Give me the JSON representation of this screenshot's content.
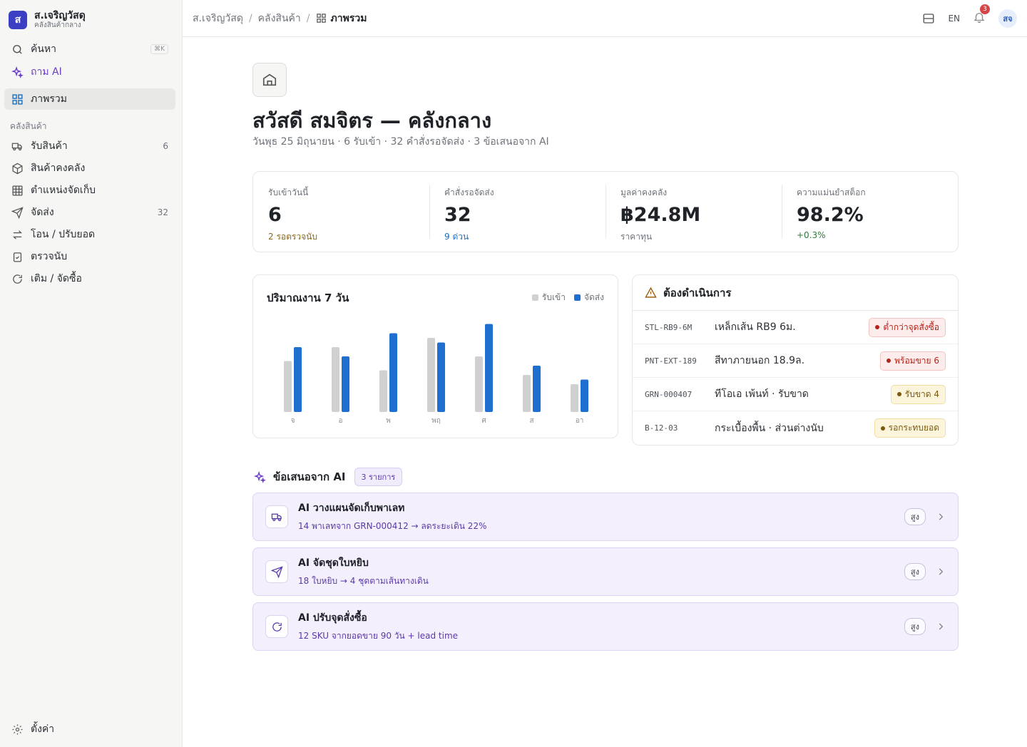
{
  "brand": {
    "logo": "ส",
    "name": "ส.เจริญวัสดุ",
    "sub": "คลังสินค้ากลาง"
  },
  "sidebar": {
    "search_label": "ค้นหา",
    "search_kbd": "⌘K",
    "ask_ai": "ถาม AI",
    "overview": "ภาพรวม",
    "section": "คลังสินค้า",
    "items": [
      {
        "label": "รับสินค้า",
        "count": "6",
        "icon": "truck-icon"
      },
      {
        "label": "สินค้าคงคลัง",
        "count": "",
        "icon": "box-icon"
      },
      {
        "label": "ตำแหน่งจัดเก็บ",
        "count": "",
        "icon": "grid-icon"
      },
      {
        "label": "จัดส่ง",
        "count": "32",
        "icon": "send-icon"
      },
      {
        "label": "โอน / ปรับยอด",
        "count": "",
        "icon": "transfer-icon"
      },
      {
        "label": "ตรวจนับ",
        "count": "",
        "icon": "clipboard-check-icon"
      },
      {
        "label": "เติม / จัดซื้อ",
        "count": "",
        "icon": "refresh-icon"
      }
    ],
    "settings": "ตั้งค่า"
  },
  "topbar": {
    "crumbs": [
      "ส.เจริญวัสดุ",
      "คลังสินค้า"
    ],
    "current": "ภาพรวม",
    "lang": "EN",
    "notif_count": "3",
    "avatar": "สจ"
  },
  "header": {
    "title": "สวัสดี สมจิตร — คลังกลาง",
    "subtitle": "วันพุธ 25 มิถุนายน · 6 รับเข้า · 32 คำสั่งรอจัดส่ง · 3 ข้อเสนอจาก AI"
  },
  "stats": [
    {
      "label": "รับเข้าวันนี้",
      "value": "6",
      "note": "2 รอตรวจนับ",
      "note_color": "#8a6a12"
    },
    {
      "label": "คำสั่งรอจัดส่ง",
      "value": "32",
      "note": "9 ด่วน",
      "note_color": "#1d6fbf"
    },
    {
      "label": "มูลค่าคงคลัง",
      "value": "฿24.8M",
      "note": "ราคาทุน",
      "note_color": "#6e737a"
    },
    {
      "label": "ความแม่นยำสต็อก",
      "value": "98.2%",
      "note": "+0.3%",
      "note_color": "#2f7a3a"
    }
  ],
  "chart": {
    "title": "ปริมาณงาน 7 วัน",
    "legend": [
      "รับเข้า",
      "จัดส่ง"
    ],
    "colors": {
      "inbound": "#d0d0d0",
      "outbound": "#1f6fd1"
    }
  },
  "chart_data": {
    "type": "bar",
    "categories": [
      "จ",
      "อ",
      "พ",
      "พฤ",
      "ศ",
      "ส",
      "อา"
    ],
    "series": [
      {
        "name": "รับเข้า",
        "values": [
          55,
          70,
          45,
          80,
          60,
          40,
          30
        ]
      },
      {
        "name": "จัดส่ง",
        "values": [
          70,
          60,
          85,
          75,
          95,
          50,
          35
        ]
      }
    ],
    "ylim": [
      0,
      100
    ]
  },
  "actions": {
    "title": "ต้องดำเนินการ",
    "rows": [
      {
        "code": "STL-RB9-6M",
        "name": "เหล็กเส้น RB9 6ม.",
        "tag": "ต่ำกว่าจุดสั่งซื้อ",
        "tag_color": "#b42318",
        "tag_bg": "#fdecec",
        "tag_border": "#f5c4c0"
      },
      {
        "code": "PNT-EXT-189",
        "name": "สีทาภายนอก 18.9ล.",
        "tag": "พร้อมขาย 6",
        "tag_color": "#b42318",
        "tag_bg": "#fdecec",
        "tag_border": "#f5c4c0"
      },
      {
        "code": "GRN-000407",
        "name": "ทีโอเอ เพ้นท์ · รับขาด",
        "tag": "รับขาด 4",
        "tag_color": "#7a5a0a",
        "tag_bg": "#fdf4dc",
        "tag_border": "#f1dea7"
      },
      {
        "code": "B-12-03",
        "name": "กระเบื้องพื้น · ส่วนต่างนับ",
        "tag": "รอกระทบยอด",
        "tag_color": "#7a5a0a",
        "tag_bg": "#fdf4dc",
        "tag_border": "#f1dea7"
      }
    ]
  },
  "ai": {
    "title": "ข้อเสนอจาก AI",
    "pill": "3 รายการ",
    "cards": [
      {
        "title": "AI วางแผนจัดเก็บพาเลท",
        "desc": "14 พาเลทจาก GRN-000412 → ลดระยะเดิน 22%",
        "level": "สูง",
        "icon": "truck-icon"
      },
      {
        "title": "AI จัดชุดใบหยิบ",
        "desc": "18 ใบหยิบ → 4 ชุดตามเส้นทางเดิน",
        "level": "สูง",
        "icon": "send-icon"
      },
      {
        "title": "AI ปรับจุดสั่งซื้อ",
        "desc": "12 SKU จากยอดขาย 90 วัน + lead time",
        "level": "สูง",
        "icon": "refresh-icon"
      }
    ]
  }
}
